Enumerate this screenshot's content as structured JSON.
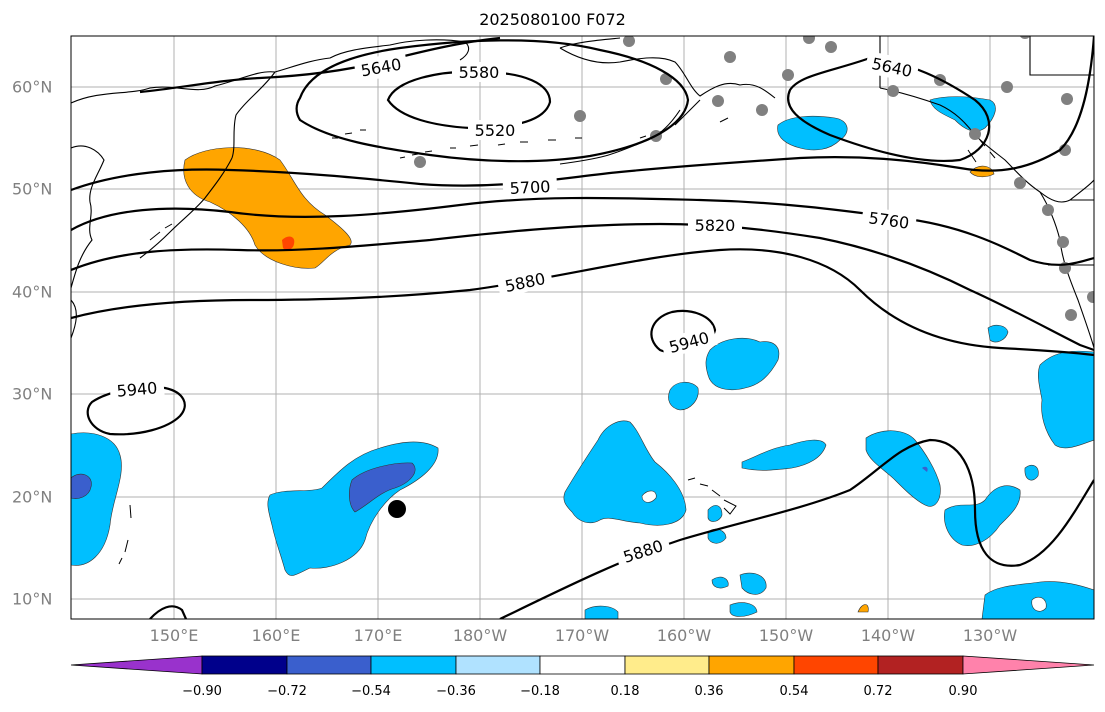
{
  "title": "2025080100 F072",
  "lon_labels": [
    "150°E",
    "160°E",
    "170°E",
    "180°W",
    "170°W",
    "160°W",
    "150°W",
    "140°W",
    "130°W"
  ],
  "lat_labels": [
    "60°N",
    "50°N",
    "40°N",
    "30°N",
    "20°N",
    "10°N"
  ],
  "contour_labels": [
    "5640",
    "5580",
    "5520",
    "5640",
    "5700",
    "5760",
    "5820",
    "5880",
    "5940",
    "5940",
    "5880"
  ],
  "colorbar": {
    "ticks": [
      "−0.90",
      "−0.72",
      "−0.54",
      "−0.36",
      "−0.18",
      "0.18",
      "0.36",
      "0.54",
      "0.72",
      "0.90"
    ],
    "colors": [
      "#9932cc",
      "#00008b",
      "#3a5fcd",
      "#00bfff",
      "#b0e2ff",
      "#ffffff",
      "#ffec8b",
      "#ffa500",
      "#ff4500",
      "#b22222",
      "#ff82ab"
    ]
  },
  "colors": {
    "shade_blue": "#00bfff",
    "shade_darkblue": "#3a5fcd",
    "shade_orange": "#ffa500",
    "shade_red": "#ff4500",
    "station_dot": "#808080"
  }
}
